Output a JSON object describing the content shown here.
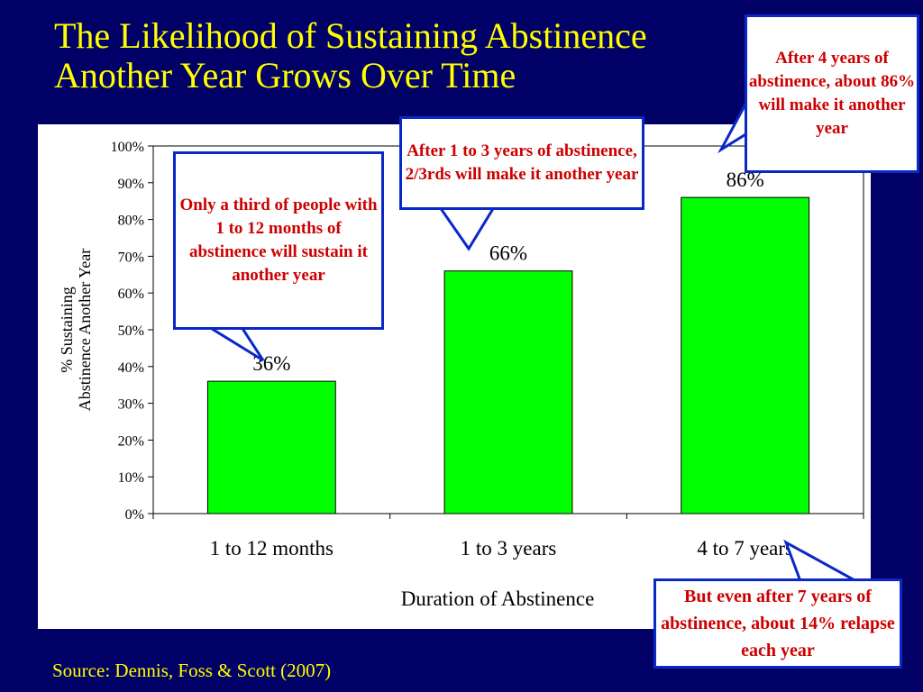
{
  "slide": {
    "title": "The Likelihood of Sustaining Abstinence Another Year Grows Over Time",
    "source": "Source: Dennis, Foss & Scott (2007)",
    "background_color": "#000066",
    "title_color": "#ffff00"
  },
  "callouts": {
    "months": "Only a third of people with\n1 to 12 months of abstinence will sustain it\nanother year",
    "years13": "After 1 to 3 years of abstinence, 2/3rds will make it another year",
    "years47": "After 4 years of abstinence, about 86% will make it another year",
    "relapse": "But even after 7 years of abstinence, about 14% relapse each year"
  },
  "chart_data": {
    "type": "bar",
    "categories": [
      "1 to 12 months",
      "1 to 3 years",
      "4 to 7 years"
    ],
    "values": [
      36,
      66,
      86
    ],
    "data_labels": [
      "36%",
      "66%",
      "86%"
    ],
    "xlabel": "Duration of Abstinence",
    "ylabel": "% Sustaining Abstinence Another Year",
    "ylim": [
      0,
      100
    ],
    "yticks": [
      "0%",
      "10%",
      "20%",
      "30%",
      "40%",
      "50%",
      "60%",
      "70%",
      "80%",
      "90%",
      "100%"
    ],
    "bar_color": "#00ff00",
    "grid": false,
    "legend": "none"
  }
}
